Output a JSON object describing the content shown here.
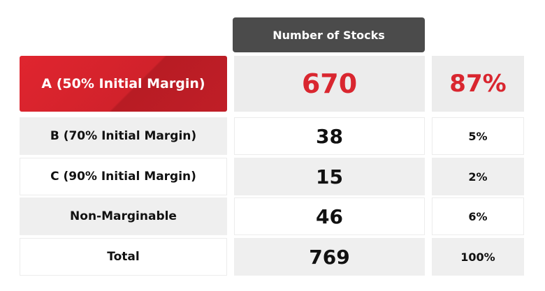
{
  "table": {
    "header": "Number of Stocks",
    "rows": [
      [
        "A (50% Initial Margin)",
        "670",
        "87%"
      ],
      [
        "B (70% Initial Margin)",
        "38",
        "5%"
      ],
      [
        "C (90% Initial Margin)",
        "15",
        "2%"
      ],
      [
        "Non-Marginable",
        "46",
        "6%"
      ],
      [
        "Total",
        "769",
        "100%"
      ]
    ]
  }
}
